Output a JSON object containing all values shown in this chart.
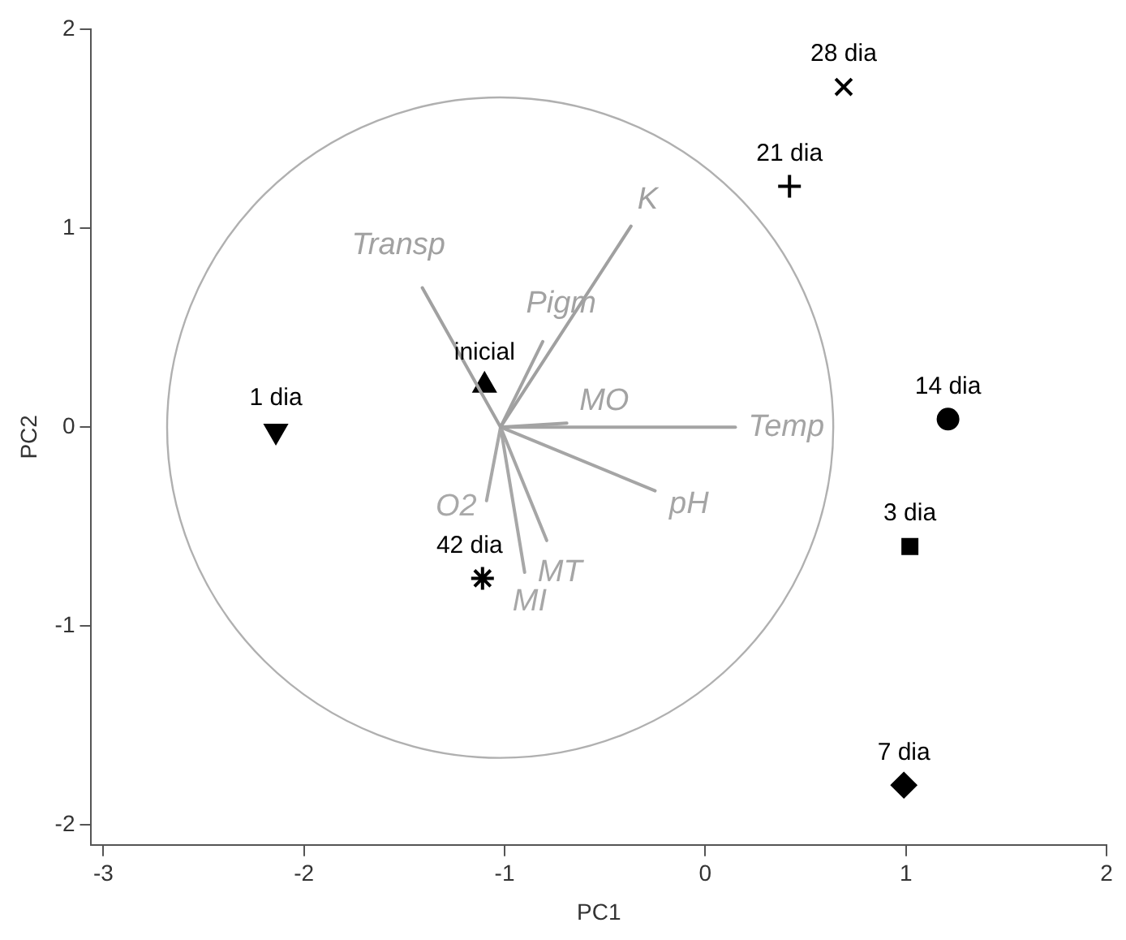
{
  "chart_data": {
    "type": "scatter",
    "xlabel": "PC1",
    "ylabel": "PC2",
    "xlim": [
      -3.06,
      2
    ],
    "ylim": [
      -2.1,
      2
    ],
    "xticks": [
      -3,
      -2,
      -1,
      0,
      1,
      2
    ],
    "yticks": [
      -2,
      -1,
      0,
      1,
      2
    ],
    "grid": false,
    "legend": false,
    "series": [
      {
        "type": "line",
        "name": "K",
        "color": "#a0a0a0",
        "x": [
          -1.02,
          -0.37
        ],
        "values": [
          0,
          1.01
        ]
      },
      {
        "type": "line",
        "name": "Transp",
        "color": "#a1a1a1",
        "x": [
          -1.02,
          -1.41
        ],
        "values": [
          0,
          0.7
        ]
      },
      {
        "type": "line",
        "name": "Pigm",
        "color": "#a2a2a2",
        "x": [
          -1.02,
          -0.81
        ],
        "values": [
          0,
          0.43
        ]
      },
      {
        "type": "line",
        "name": "MO",
        "color": "#a3a3a3",
        "x": [
          -1.02,
          -0.69
        ],
        "values": [
          0,
          0.02
        ]
      },
      {
        "type": "line",
        "name": "Temp",
        "color": "#a4a4a4",
        "x": [
          -1.02,
          0.15
        ],
        "values": [
          0,
          0
        ]
      },
      {
        "type": "line",
        "name": "pH",
        "color": "#a5a5a5",
        "x": [
          -1.02,
          -0.25
        ],
        "values": [
          0,
          -0.32
        ]
      },
      {
        "type": "line",
        "name": "MT",
        "color": "#a6a6a6",
        "x": [
          -1.02,
          -0.79
        ],
        "values": [
          0,
          -0.57
        ]
      },
      {
        "type": "line",
        "name": "MI",
        "color": "#a7a7a7",
        "x": [
          -1.02,
          -0.9
        ],
        "values": [
          0,
          -0.73
        ]
      },
      {
        "type": "line",
        "name": "O2",
        "color": "#a8a8a8",
        "x": [
          -1.02,
          -1.09
        ],
        "values": [
          0,
          -0.37
        ]
      },
      {
        "marker": "triangle-down",
        "name": "1 dia",
        "color": "#000000",
        "x": [
          -2.14
        ],
        "values": [
          -0.02
        ]
      },
      {
        "marker": "triangle",
        "name": "inicial",
        "color": "#000000",
        "x": [
          -1.1
        ],
        "values": [
          0.21
        ]
      },
      {
        "marker": "cross",
        "name": "42 dia",
        "color": "#000000",
        "x": [
          -1.11
        ],
        "values": [
          -0.76
        ]
      },
      {
        "marker": "x",
        "name": "28 dia",
        "color": "#000000",
        "x": [
          0.69
        ],
        "values": [
          1.71
        ]
      },
      {
        "marker": "plus",
        "name": "21 dia",
        "color": "#000000",
        "x": [
          0.42
        ],
        "values": [
          1.21
        ]
      },
      {
        "marker": "circle",
        "name": "14 dia",
        "color": "#000000",
        "x": [
          1.21
        ],
        "values": [
          0.04
        ]
      },
      {
        "marker": "square",
        "name": "3 dia",
        "color": "#000000",
        "x": [
          1.02
        ],
        "values": [
          -0.6
        ]
      },
      {
        "marker": "diamond",
        "name": "7 dia",
        "color": "#000000",
        "x": [
          0.99
        ],
        "values": [
          -1.8
        ]
      }
    ]
  }
}
